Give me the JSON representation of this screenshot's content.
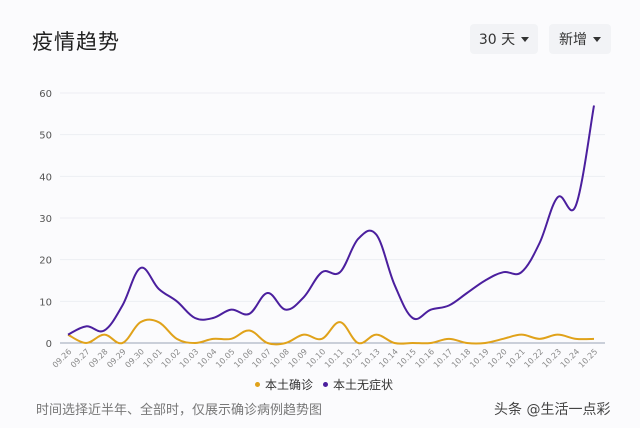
{
  "header": {
    "title": "疫情趋势",
    "range_select": "30 天",
    "type_select": "新增"
  },
  "legend": [
    {
      "label": "本土确诊",
      "color": "#e0a21a"
    },
    {
      "label": "本土无症状",
      "color": "#4b1f9e"
    }
  ],
  "note": "时间选择近半年、全部时，仅展示确诊病例趋势图",
  "watermark": "头条 @生活一点彩",
  "chart_data": {
    "type": "line",
    "title": "疫情趋势",
    "xlabel": "",
    "ylabel": "",
    "ylim": [
      0,
      60
    ],
    "yticks": [
      0,
      10,
      20,
      30,
      40,
      50,
      60
    ],
    "grid": true,
    "legend_position": "bottom",
    "categories": [
      "09.26",
      "09.27",
      "09.28",
      "09.29",
      "09.30",
      "10.01",
      "10.02",
      "10.03",
      "10.04",
      "10.05",
      "10.06",
      "10.07",
      "10.08",
      "10.09",
      "10.10",
      "10.11",
      "10.12",
      "10.13",
      "10.14",
      "10.15",
      "10.16",
      "10.17",
      "10.18",
      "10.19",
      "10.20",
      "10.21",
      "10.22",
      "10.23",
      "10.24",
      "10.25"
    ],
    "series": [
      {
        "name": "本土确诊",
        "color": "#e0a21a",
        "values": [
          2,
          0,
          2,
          0,
          5,
          5,
          1,
          0,
          1,
          1,
          3,
          0,
          0,
          2,
          1,
          5,
          0,
          2,
          0,
          0,
          0,
          1,
          0,
          0,
          1,
          2,
          1,
          2,
          1,
          1
        ]
      },
      {
        "name": "本土无症状",
        "color": "#4b1f9e",
        "values": [
          2,
          4,
          3,
          9,
          18,
          13,
          10,
          6,
          6,
          8,
          7,
          12,
          8,
          11,
          17,
          17,
          25,
          26,
          14,
          6,
          8,
          9,
          12,
          15,
          17,
          17,
          24,
          35,
          33,
          57
        ]
      }
    ]
  }
}
